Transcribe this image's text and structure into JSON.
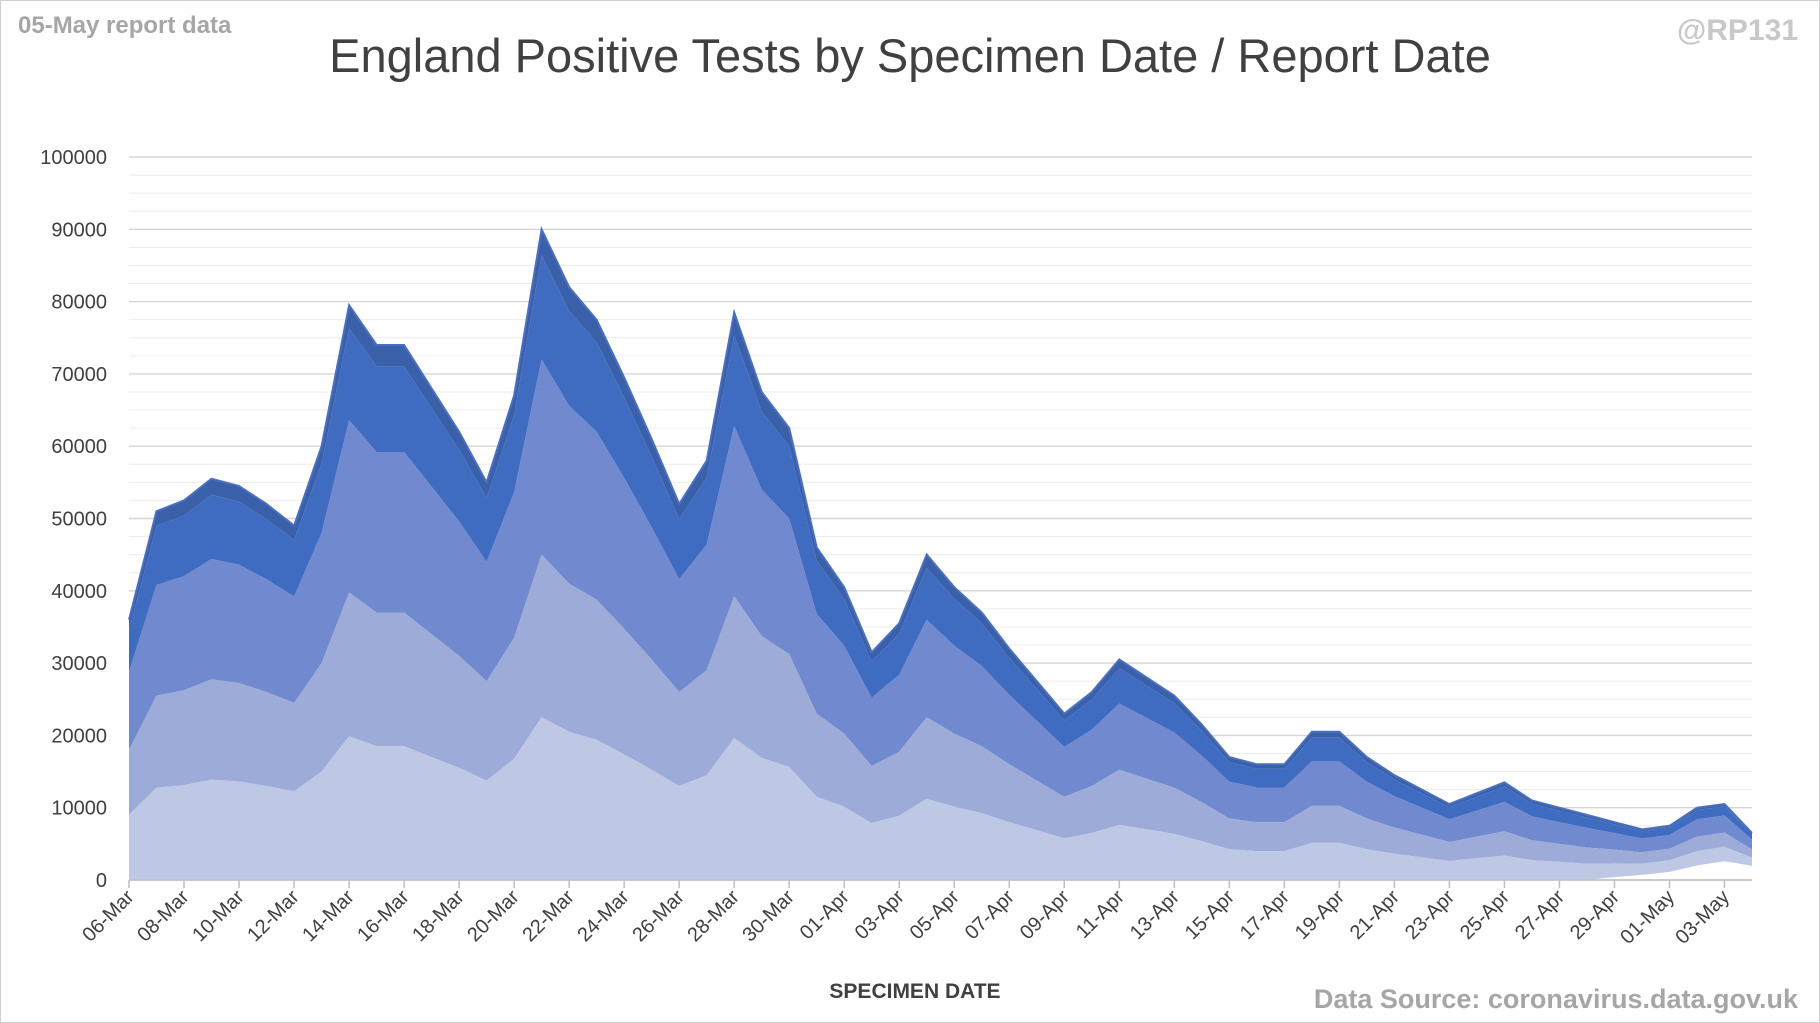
{
  "corner_left": "05-May report data",
  "corner_right": "@RP131",
  "source": "Data Source: coronavirus.data.gov.uk",
  "colors": [
    "#bec7e3",
    "#9dabd8",
    "#7089cf",
    "#3f6bc0",
    "#3a60aa"
  ],
  "chart_data": {
    "type": "area",
    "title": "England Positive Tests by Specimen Date / Report Date",
    "xlabel": "SPECIMEN DATE",
    "ylabel": "",
    "ylim": [
      0,
      100000
    ],
    "yticks": [
      0,
      10000,
      20000,
      30000,
      40000,
      50000,
      60000,
      70000,
      80000,
      90000,
      100000
    ],
    "x": [
      "06-Mar",
      "07-Mar",
      "08-Mar",
      "09-Mar",
      "10-Mar",
      "11-Mar",
      "12-Mar",
      "13-Mar",
      "14-Mar",
      "15-Mar",
      "16-Mar",
      "17-Mar",
      "18-Mar",
      "19-Mar",
      "20-Mar",
      "21-Mar",
      "22-Mar",
      "23-Mar",
      "24-Mar",
      "25-Mar",
      "26-Mar",
      "27-Mar",
      "28-Mar",
      "29-Mar",
      "30-Mar",
      "31-Mar",
      "01-Apr",
      "02-Apr",
      "03-Apr",
      "04-Apr",
      "05-Apr",
      "06-Apr",
      "07-Apr",
      "08-Apr",
      "09-Apr",
      "10-Apr",
      "11-Apr",
      "12-Apr",
      "13-Apr",
      "14-Apr",
      "15-Apr",
      "16-Apr",
      "17-Apr",
      "18-Apr",
      "19-Apr",
      "20-Apr",
      "21-Apr",
      "22-Apr",
      "23-Apr",
      "24-Apr",
      "25-Apr",
      "26-Apr",
      "27-Apr",
      "28-Apr",
      "29-Apr",
      "30-Apr",
      "01-May",
      "02-May",
      "03-May",
      "04-May"
    ],
    "xtick_labels": [
      "06-Mar",
      "08-Mar",
      "10-Mar",
      "12-Mar",
      "14-Mar",
      "16-Mar",
      "18-Mar",
      "20-Mar",
      "22-Mar",
      "24-Mar",
      "26-Mar",
      "28-Mar",
      "30-Mar",
      "01-Apr",
      "03-Apr",
      "05-Apr",
      "07-Apr",
      "09-Apr",
      "11-Apr",
      "13-Apr",
      "15-Apr",
      "17-Apr",
      "19-Apr",
      "21-Apr",
      "23-Apr",
      "25-Apr",
      "27-Apr",
      "29-Apr",
      "01-May",
      "03-May"
    ],
    "totals": [
      36000,
      51000,
      52500,
      55500,
      54500,
      52000,
      49000,
      60000,
      79500,
      74000,
      74000,
      68000,
      62000,
      55000,
      67000,
      90000,
      82000,
      77500,
      69500,
      61000,
      52000,
      58000,
      78500,
      67500,
      62500,
      46000,
      40500,
      31500,
      35500,
      45000,
      40500,
      37000,
      32000,
      27500,
      23000,
      26000,
      30500,
      28000,
      25500,
      21500,
      17000,
      16000,
      16000,
      20500,
      20500,
      17000,
      14500,
      12500,
      10500,
      12000,
      13500,
      11000,
      10000,
      9000,
      8000,
      7000,
      7500,
      10000,
      10500,
      6500
    ],
    "grid": true,
    "legend": "none"
  }
}
